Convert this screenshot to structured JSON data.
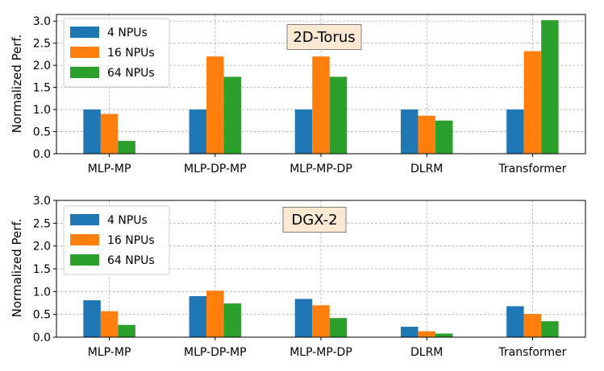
{
  "chart_data": [
    {
      "type": "bar",
      "title": "",
      "annotation": "2D-Torus",
      "xlabel": "",
      "ylabel": "Normalized Perf.",
      "ylim": [
        0,
        3.15
      ],
      "yticks": [
        "0.0",
        "0.5",
        "1.0",
        "1.5",
        "2.0",
        "2.5",
        "3.0"
      ],
      "grid": true,
      "legend_position": "top-left",
      "categories": [
        "MLP-MP",
        "MLP-DP-MP",
        "MLP-MP-DP",
        "DLRM",
        "Transformer"
      ],
      "series": [
        {
          "name": "4 NPUs",
          "color": "#1f77b4",
          "values": [
            1.0,
            1.0,
            1.0,
            1.0,
            1.0
          ]
        },
        {
          "name": "16 NPUs",
          "color": "#ff7f0e",
          "values": [
            0.9,
            2.2,
            2.2,
            0.86,
            2.32
          ]
        },
        {
          "name": "64 NPUs",
          "color": "#2ca02c",
          "values": [
            0.29,
            1.74,
            1.74,
            0.75,
            3.02
          ]
        }
      ]
    },
    {
      "type": "bar",
      "title": "",
      "annotation": "DGX-2",
      "xlabel": "",
      "ylabel": "Normalized Perf.",
      "ylim": [
        0,
        3.0
      ],
      "yticks": [
        "0.0",
        "0.5",
        "1.0",
        "1.5",
        "2.0",
        "2.5",
        "3.0"
      ],
      "grid": true,
      "legend_position": "top-left",
      "categories": [
        "MLP-MP",
        "MLP-DP-MP",
        "MLP-MP-DP",
        "DLRM",
        "Transformer"
      ],
      "series": [
        {
          "name": "4 NPUs",
          "color": "#1f77b4",
          "values": [
            0.81,
            0.9,
            0.84,
            0.23,
            0.68
          ]
        },
        {
          "name": "16 NPUs",
          "color": "#ff7f0e",
          "values": [
            0.57,
            1.02,
            0.7,
            0.13,
            0.51
          ]
        },
        {
          "name": "64 NPUs",
          "color": "#2ca02c",
          "values": [
            0.27,
            0.74,
            0.42,
            0.08,
            0.35
          ]
        }
      ]
    }
  ]
}
